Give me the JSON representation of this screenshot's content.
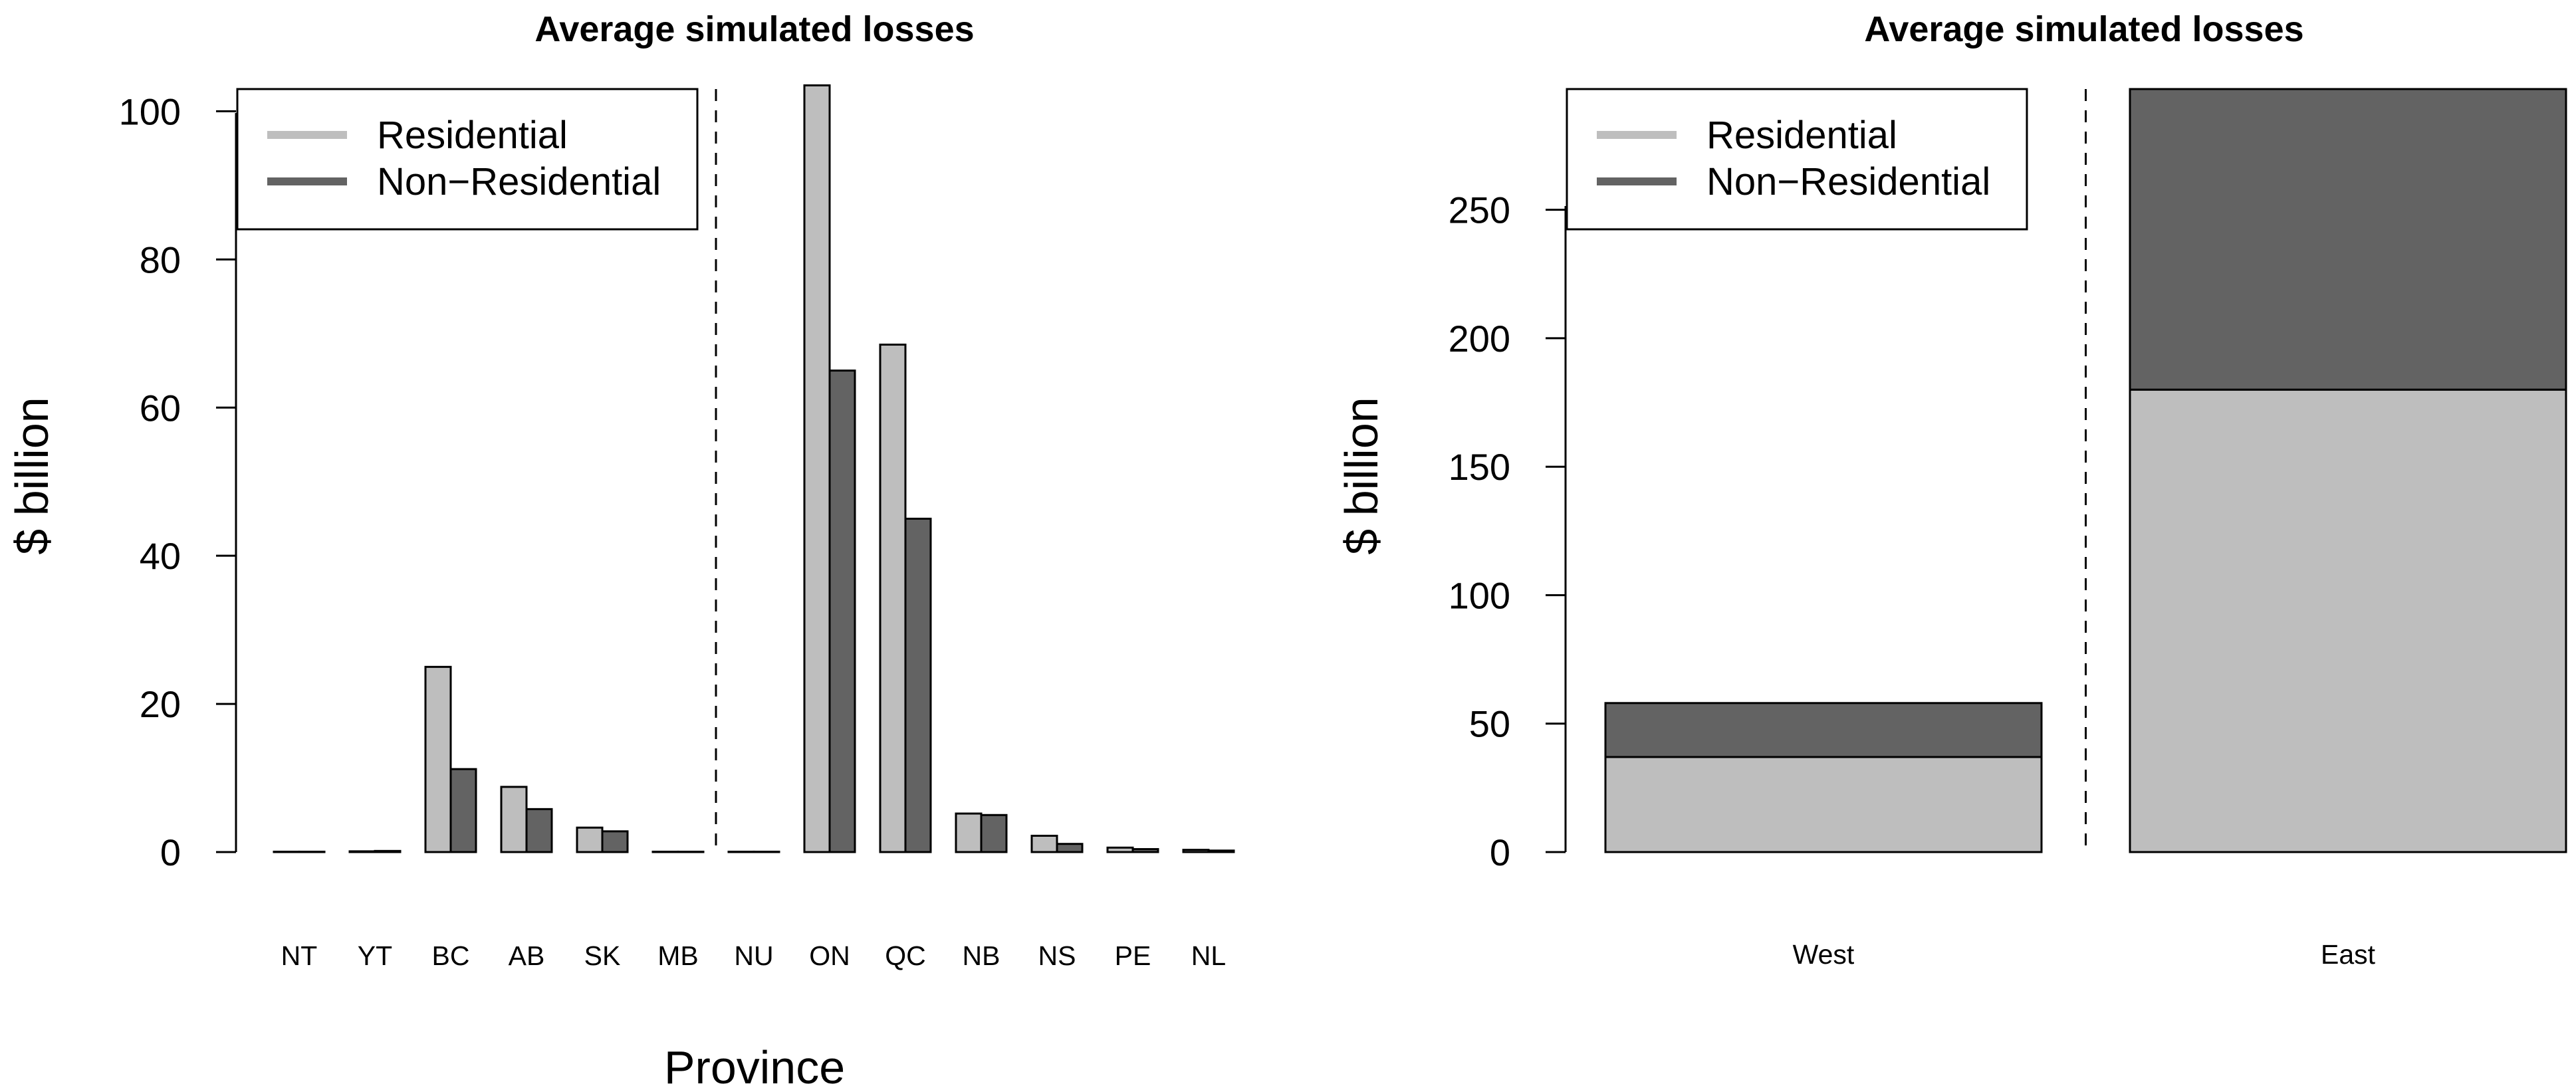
{
  "colors": {
    "residential": "#bebebe",
    "non_residential": "#636363",
    "outline": "#000000",
    "background": "#ffffff"
  },
  "chart_data": [
    {
      "type": "bar",
      "title": "Average simulated losses",
      "xlabel": "Province",
      "ylabel": "$ billion",
      "ylim": [
        0,
        103
      ],
      "yticks": [
        "0",
        "20",
        "40",
        "60",
        "80",
        "100"
      ],
      "categories": [
        "NT",
        "YT",
        "BC",
        "AB",
        "SK",
        "MB",
        "NU",
        "ON",
        "QC",
        "NB",
        "NS",
        "PE",
        "NL"
      ],
      "series": [
        {
          "name": "Residential",
          "values": [
            0.05,
            0.1,
            25,
            8.8,
            3.3,
            0.05,
            0.05,
            103.5,
            68.5,
            5.2,
            2.2,
            0.6,
            0.3
          ]
        },
        {
          "name": "Non−Residential",
          "values": [
            0.05,
            0.15,
            11.2,
            5.8,
            2.8,
            0.05,
            0.05,
            65,
            45,
            5,
            1.1,
            0.4,
            0.2
          ]
        }
      ],
      "divider_after_category": "MB",
      "divider_style": "dashed",
      "legend": {
        "position": "top-left",
        "entries": [
          "Residential",
          "Non−Residential"
        ]
      }
    },
    {
      "type": "bar",
      "stacked": true,
      "title": "Average simulated losses",
      "xlabel": "",
      "ylabel": "$ billion",
      "ylim": [
        0,
        297
      ],
      "yticks": [
        "0",
        "50",
        "100",
        "150",
        "200",
        "250"
      ],
      "categories": [
        "West",
        "East"
      ],
      "series": [
        {
          "name": "Residential",
          "values": [
            37,
            180
          ]
        },
        {
          "name": "Non−Residential",
          "values": [
            21,
            117
          ]
        }
      ],
      "divider_between_categories": true,
      "divider_style": "dashed",
      "legend": {
        "position": "top-left",
        "entries": [
          "Residential",
          "Non−Residential"
        ]
      }
    }
  ]
}
